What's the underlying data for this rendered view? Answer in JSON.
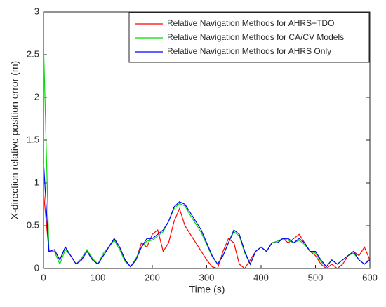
{
  "chart_data": {
    "type": "line",
    "xlabel": "Time (s)",
    "ylabel": "X-direction relative position error (m)",
    "x": [
      0,
      10,
      20,
      30,
      40,
      50,
      60,
      70,
      80,
      90,
      100,
      110,
      120,
      130,
      140,
      150,
      160,
      170,
      180,
      190,
      200,
      210,
      220,
      230,
      240,
      250,
      260,
      270,
      280,
      290,
      300,
      310,
      320,
      330,
      340,
      350,
      360,
      370,
      380,
      390,
      400,
      410,
      420,
      430,
      440,
      450,
      460,
      470,
      480,
      490,
      500,
      510,
      520,
      530,
      540,
      550,
      560,
      570,
      580,
      590,
      600
    ],
    "series": [
      {
        "name": "Relative Navigation Methods for AHRS+TDO",
        "color": "#ff0000",
        "values": [
          0.9,
          0.2,
          0.22,
          0.1,
          0.25,
          0.15,
          0.05,
          0.1,
          0.2,
          0.1,
          0.05,
          0.15,
          0.25,
          0.35,
          0.25,
          0.1,
          0.02,
          0.1,
          0.3,
          0.25,
          0.4,
          0.45,
          0.2,
          0.3,
          0.55,
          0.7,
          0.5,
          0.4,
          0.3,
          0.2,
          0.1,
          0.02,
          0.0,
          0.2,
          0.35,
          0.3,
          0.05,
          0.0,
          0.1,
          0.2,
          0.25,
          0.2,
          0.3,
          0.3,
          0.35,
          0.3,
          0.35,
          0.4,
          0.3,
          0.2,
          0.15,
          0.05,
          0.0,
          0.05,
          0.0,
          0.05,
          0.15,
          0.2,
          0.15,
          0.25,
          0.1
        ]
      },
      {
        "name": "Relative Navigation Methods for CA/CV Models",
        "color": "#00dd00",
        "values": [
          2.65,
          0.2,
          0.2,
          0.05,
          0.22,
          0.15,
          0.05,
          0.12,
          0.22,
          0.12,
          0.05,
          0.18,
          0.25,
          0.33,
          0.22,
          0.08,
          0.02,
          0.12,
          0.25,
          0.32,
          0.33,
          0.38,
          0.43,
          0.55,
          0.7,
          0.76,
          0.73,
          0.62,
          0.52,
          0.42,
          0.28,
          0.14,
          0.05,
          0.15,
          0.3,
          0.43,
          0.38,
          0.18,
          0.05,
          0.2,
          0.25,
          0.2,
          0.3,
          0.32,
          0.35,
          0.33,
          0.3,
          0.33,
          0.28,
          0.2,
          0.18,
          0.08,
          0.02,
          0.1,
          0.05,
          0.1,
          0.15,
          0.18,
          0.1,
          0.05,
          0.12
        ]
      },
      {
        "name": "Relative Navigation Methods for AHRS Only",
        "color": "#0000ff",
        "values": [
          1.25,
          0.2,
          0.22,
          0.1,
          0.25,
          0.15,
          0.05,
          0.1,
          0.2,
          0.1,
          0.05,
          0.15,
          0.25,
          0.35,
          0.25,
          0.1,
          0.02,
          0.1,
          0.25,
          0.35,
          0.35,
          0.4,
          0.45,
          0.55,
          0.72,
          0.78,
          0.75,
          0.65,
          0.55,
          0.45,
          0.3,
          0.15,
          0.05,
          0.15,
          0.3,
          0.45,
          0.4,
          0.2,
          0.05,
          0.2,
          0.25,
          0.2,
          0.3,
          0.3,
          0.35,
          0.35,
          0.3,
          0.35,
          0.3,
          0.2,
          0.2,
          0.1,
          0.02,
          0.1,
          0.05,
          0.1,
          0.15,
          0.2,
          0.1,
          0.05,
          0.1
        ]
      }
    ],
    "xlim": [
      0,
      600
    ],
    "xticks": [
      0,
      100,
      200,
      300,
      400,
      500,
      600
    ],
    "ylim": [
      0,
      3
    ],
    "yticks": [
      0,
      0.5,
      1,
      1.5,
      2,
      2.5,
      3
    ],
    "legend": "upper right"
  }
}
